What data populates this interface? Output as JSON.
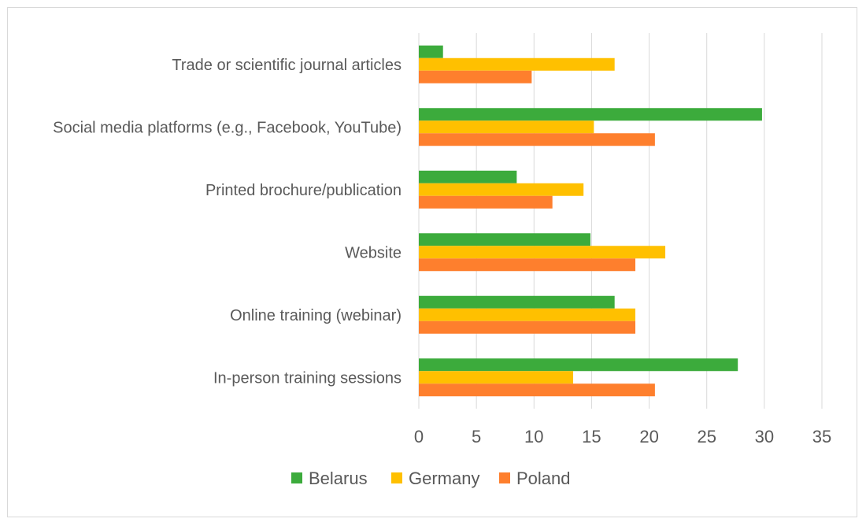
{
  "chart_data": {
    "type": "bar",
    "orientation": "horizontal",
    "title": "",
    "xlabel": "",
    "ylabel": "",
    "xlim": [
      0,
      35
    ],
    "xticks": [
      0,
      5,
      10,
      15,
      20,
      25,
      30,
      35
    ],
    "grid": "vertical",
    "legend_position": "bottom",
    "categories": [
      "Trade or scientific journal articles",
      "Social media platforms (e.g., Facebook, YouTube)",
      "Printed brochure/publication",
      "Website",
      "Online training (webinar)",
      "In-person training sessions"
    ],
    "series": [
      {
        "name": "Belarus",
        "color": "#3cab3c",
        "values": [
          2.1,
          29.8,
          8.5,
          14.9,
          17.0,
          27.7
        ]
      },
      {
        "name": "Germany",
        "color": "#ffc000",
        "values": [
          17.0,
          15.2,
          14.3,
          21.4,
          18.8,
          13.4
        ]
      },
      {
        "name": "Poland",
        "color": "#fe7f2d",
        "values": [
          9.8,
          20.5,
          11.6,
          18.8,
          18.8,
          20.5
        ]
      }
    ]
  }
}
